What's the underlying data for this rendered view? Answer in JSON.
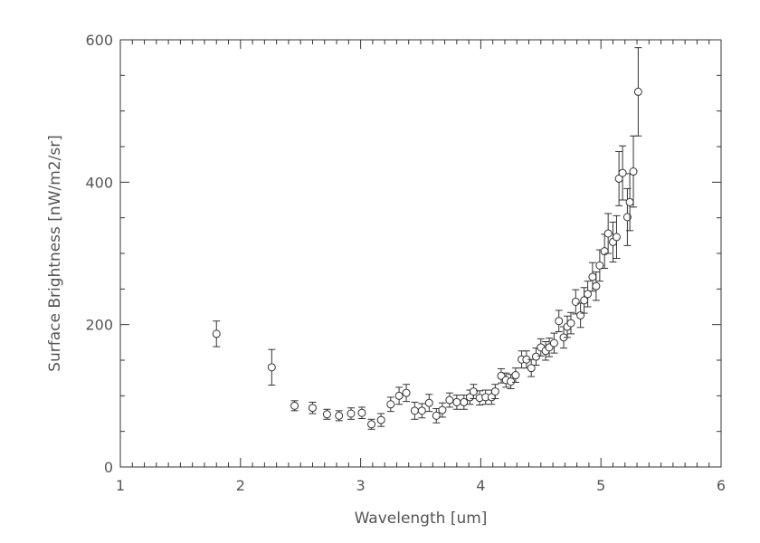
{
  "chart_data": {
    "type": "scatter",
    "title": "",
    "xlabel": "Wavelength [um]",
    "ylabel": "Surface Brightness [nW/m2/sr]",
    "xlim": [
      1,
      6
    ],
    "ylim": [
      0,
      600
    ],
    "xticks": [
      "1",
      "2",
      "3",
      "4",
      "5",
      "6"
    ],
    "yticks": [
      "0",
      "200",
      "400",
      "600"
    ],
    "grid": false,
    "marker": "open-circle",
    "error_bars": true,
    "color": "#333333",
    "points": [
      {
        "x": 1.8,
        "y": 187,
        "err": 18
      },
      {
        "x": 2.26,
        "y": 140,
        "err": 25
      },
      {
        "x": 2.45,
        "y": 86,
        "err": 7
      },
      {
        "x": 2.6,
        "y": 83,
        "err": 8
      },
      {
        "x": 2.72,
        "y": 74,
        "err": 7
      },
      {
        "x": 2.82,
        "y": 72,
        "err": 7
      },
      {
        "x": 2.92,
        "y": 75,
        "err": 8
      },
      {
        "x": 3.01,
        "y": 76,
        "err": 8
      },
      {
        "x": 3.09,
        "y": 60,
        "err": 7
      },
      {
        "x": 3.17,
        "y": 66,
        "err": 9
      },
      {
        "x": 3.25,
        "y": 88,
        "err": 10
      },
      {
        "x": 3.32,
        "y": 100,
        "err": 12
      },
      {
        "x": 3.38,
        "y": 104,
        "err": 12
      },
      {
        "x": 3.45,
        "y": 79,
        "err": 12
      },
      {
        "x": 3.51,
        "y": 79,
        "err": 10
      },
      {
        "x": 3.57,
        "y": 90,
        "err": 12
      },
      {
        "x": 3.63,
        "y": 72,
        "err": 10
      },
      {
        "x": 3.68,
        "y": 80,
        "err": 10
      },
      {
        "x": 3.74,
        "y": 94,
        "err": 10
      },
      {
        "x": 3.8,
        "y": 91,
        "err": 10
      },
      {
        "x": 3.86,
        "y": 91,
        "err": 10
      },
      {
        "x": 3.91,
        "y": 98,
        "err": 10
      },
      {
        "x": 3.94,
        "y": 106,
        "err": 10
      },
      {
        "x": 3.99,
        "y": 97,
        "err": 10
      },
      {
        "x": 4.04,
        "y": 98,
        "err": 10
      },
      {
        "x": 4.09,
        "y": 98,
        "err": 10
      },
      {
        "x": 4.12,
        "y": 106,
        "err": 10
      },
      {
        "x": 4.17,
        "y": 128,
        "err": 10
      },
      {
        "x": 4.21,
        "y": 122,
        "err": 10
      },
      {
        "x": 4.25,
        "y": 120,
        "err": 10
      },
      {
        "x": 4.29,
        "y": 129,
        "err": 10
      },
      {
        "x": 4.34,
        "y": 151,
        "err": 12
      },
      {
        "x": 4.38,
        "y": 151,
        "err": 12
      },
      {
        "x": 4.42,
        "y": 139,
        "err": 12
      },
      {
        "x": 4.46,
        "y": 155,
        "err": 12
      },
      {
        "x": 4.5,
        "y": 168,
        "err": 12
      },
      {
        "x": 4.54,
        "y": 163,
        "err": 13
      },
      {
        "x": 4.57,
        "y": 168,
        "err": 13
      },
      {
        "x": 4.61,
        "y": 174,
        "err": 14
      },
      {
        "x": 4.65,
        "y": 205,
        "err": 15
      },
      {
        "x": 4.69,
        "y": 182,
        "err": 15
      },
      {
        "x": 4.72,
        "y": 197,
        "err": 15
      },
      {
        "x": 4.75,
        "y": 202,
        "err": 15
      },
      {
        "x": 4.79,
        "y": 232,
        "err": 17
      },
      {
        "x": 4.83,
        "y": 213,
        "err": 17
      },
      {
        "x": 4.86,
        "y": 234,
        "err": 18
      },
      {
        "x": 4.89,
        "y": 243,
        "err": 18
      },
      {
        "x": 4.93,
        "y": 267,
        "err": 20
      },
      {
        "x": 4.96,
        "y": 254,
        "err": 20
      },
      {
        "x": 4.99,
        "y": 283,
        "err": 22
      },
      {
        "x": 5.03,
        "y": 303,
        "err": 24
      },
      {
        "x": 5.06,
        "y": 328,
        "err": 28
      },
      {
        "x": 5.1,
        "y": 316,
        "err": 28
      },
      {
        "x": 5.13,
        "y": 323,
        "err": 30
      },
      {
        "x": 5.15,
        "y": 405,
        "err": 38
      },
      {
        "x": 5.18,
        "y": 413,
        "err": 38
      },
      {
        "x": 5.22,
        "y": 351,
        "err": 40
      },
      {
        "x": 5.24,
        "y": 372,
        "err": 40
      },
      {
        "x": 5.27,
        "y": 415,
        "err": 50
      },
      {
        "x": 5.31,
        "y": 527,
        "err": 62
      }
    ]
  }
}
